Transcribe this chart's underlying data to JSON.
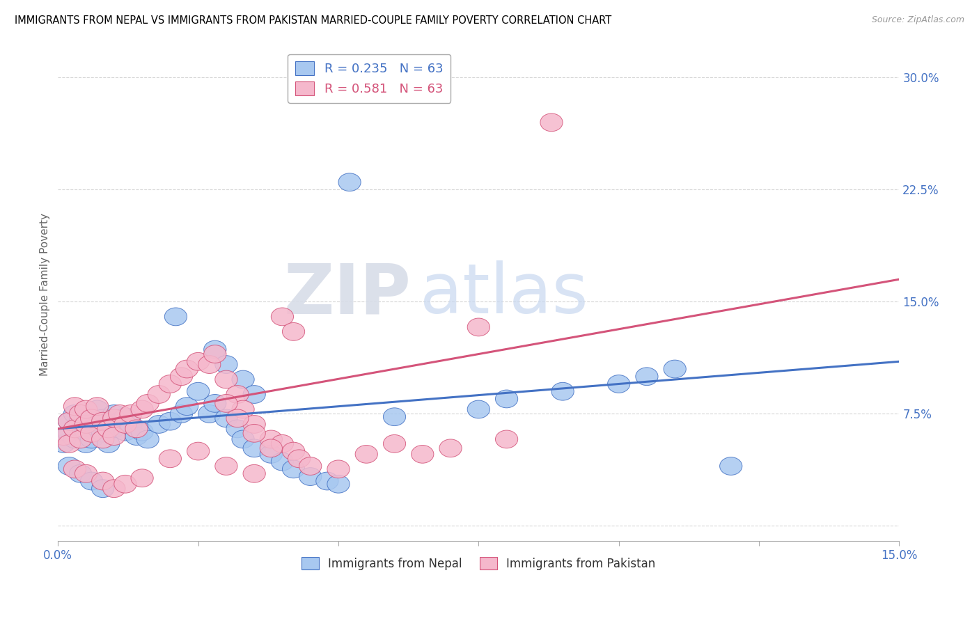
{
  "title": "IMMIGRANTS FROM NEPAL VS IMMIGRANTS FROM PAKISTAN MARRIED-COUPLE FAMILY POVERTY CORRELATION CHART",
  "source": "Source: ZipAtlas.com",
  "ylabel": "Married-Couple Family Poverty",
  "xlim": [
    0.0,
    0.15
  ],
  "ylim": [
    -0.01,
    0.32
  ],
  "nepal_color": "#a8c8f0",
  "pakistan_color": "#f5b8cc",
  "nepal_line_color": "#4472c4",
  "pakistan_line_color": "#d4547a",
  "watermark_zip": "ZIP",
  "watermark_atlas": "atlas",
  "nepal_trend": [
    0.065,
    0.11
  ],
  "pakistan_trend": [
    0.065,
    0.165
  ],
  "nepal_points_x": [
    0.001,
    0.002,
    0.002,
    0.003,
    0.003,
    0.003,
    0.004,
    0.004,
    0.005,
    0.005,
    0.005,
    0.006,
    0.006,
    0.007,
    0.007,
    0.008,
    0.008,
    0.009,
    0.009,
    0.01,
    0.01,
    0.011,
    0.012,
    0.012,
    0.013,
    0.014,
    0.015,
    0.016,
    0.018,
    0.02,
    0.021,
    0.022,
    0.023,
    0.025,
    0.027,
    0.028,
    0.03,
    0.032,
    0.033,
    0.035,
    0.038,
    0.04,
    0.042,
    0.045,
    0.048,
    0.05,
    0.028,
    0.03,
    0.033,
    0.035,
    0.06,
    0.075,
    0.08,
    0.09,
    0.1,
    0.105,
    0.11,
    0.002,
    0.004,
    0.006,
    0.052,
    0.008,
    0.12
  ],
  "nepal_points_y": [
    0.055,
    0.062,
    0.07,
    0.058,
    0.065,
    0.075,
    0.06,
    0.07,
    0.055,
    0.063,
    0.072,
    0.065,
    0.058,
    0.07,
    0.078,
    0.062,
    0.072,
    0.055,
    0.068,
    0.065,
    0.075,
    0.07,
    0.063,
    0.073,
    0.068,
    0.06,
    0.063,
    0.058,
    0.068,
    0.07,
    0.14,
    0.075,
    0.08,
    0.09,
    0.075,
    0.082,
    0.072,
    0.065,
    0.058,
    0.052,
    0.048,
    0.043,
    0.038,
    0.033,
    0.03,
    0.028,
    0.118,
    0.108,
    0.098,
    0.088,
    0.073,
    0.078,
    0.085,
    0.09,
    0.095,
    0.1,
    0.105,
    0.04,
    0.035,
    0.03,
    0.23,
    0.025,
    0.04
  ],
  "pakistan_points_x": [
    0.001,
    0.002,
    0.002,
    0.003,
    0.003,
    0.004,
    0.004,
    0.005,
    0.005,
    0.006,
    0.006,
    0.007,
    0.008,
    0.008,
    0.009,
    0.01,
    0.01,
    0.011,
    0.012,
    0.013,
    0.014,
    0.015,
    0.016,
    0.018,
    0.02,
    0.022,
    0.023,
    0.025,
    0.027,
    0.028,
    0.03,
    0.032,
    0.033,
    0.035,
    0.038,
    0.04,
    0.042,
    0.043,
    0.045,
    0.05,
    0.055,
    0.06,
    0.065,
    0.07,
    0.075,
    0.08,
    0.03,
    0.032,
    0.035,
    0.038,
    0.003,
    0.005,
    0.008,
    0.01,
    0.012,
    0.015,
    0.02,
    0.025,
    0.03,
    0.035,
    0.088,
    0.04,
    0.042
  ],
  "pakistan_points_y": [
    0.06,
    0.055,
    0.07,
    0.065,
    0.08,
    0.058,
    0.075,
    0.068,
    0.078,
    0.062,
    0.072,
    0.08,
    0.07,
    0.058,
    0.065,
    0.072,
    0.06,
    0.075,
    0.068,
    0.075,
    0.065,
    0.078,
    0.082,
    0.088,
    0.095,
    0.1,
    0.105,
    0.11,
    0.108,
    0.115,
    0.098,
    0.088,
    0.078,
    0.068,
    0.058,
    0.055,
    0.05,
    0.045,
    0.04,
    0.038,
    0.048,
    0.055,
    0.048,
    0.052,
    0.133,
    0.058,
    0.082,
    0.072,
    0.062,
    0.052,
    0.038,
    0.035,
    0.03,
    0.025,
    0.028,
    0.032,
    0.045,
    0.05,
    0.04,
    0.035,
    0.27,
    0.14,
    0.13
  ]
}
